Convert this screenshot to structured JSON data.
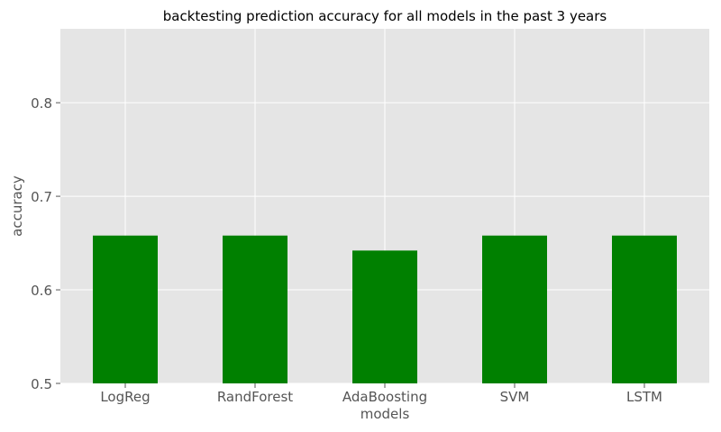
{
  "chart_data": {
    "type": "bar",
    "title": "backtesting prediction accuracy for all models in the past 3 years",
    "xlabel": "models",
    "ylabel": "accuracy",
    "categories": [
      "LogReg",
      "RandForest",
      "AdaBoosting",
      "SVM",
      "LSTM"
    ],
    "values": [
      0.658,
      0.658,
      0.642,
      0.658,
      0.658
    ],
    "ylim": [
      0.5,
      0.879
    ],
    "yticks": [
      "0.5",
      "0.6",
      "0.7",
      "0.8"
    ],
    "grid": true,
    "legend": "none",
    "colors": {
      "bar": "#008000",
      "plot_background": "#e5e5e5",
      "grid": "#ffffff",
      "text": "#555555",
      "title": "#000000"
    }
  }
}
